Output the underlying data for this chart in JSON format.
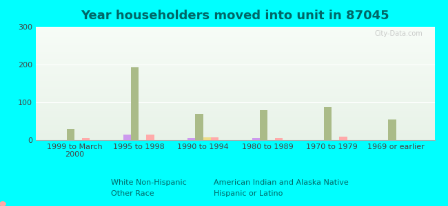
{
  "title": "Year householders moved into unit in 87045",
  "background_color": "#00FFFF",
  "categories": [
    "1999 to March\n2000",
    "1995 to 1998",
    "1990 to 1994",
    "1980 to 1989",
    "1970 to 1979",
    "1969 or earlier"
  ],
  "series": {
    "White Non-Hispanic": {
      "values": [
        0,
        14,
        5,
        5,
        0,
        0
      ],
      "color": "#cc99ee"
    },
    "American Indian and Alaska Native": {
      "values": [
        30,
        192,
        70,
        80,
        87,
        55
      ],
      "color": "#aabb88"
    },
    "Other Race": {
      "values": [
        0,
        0,
        8,
        0,
        0,
        0
      ],
      "color": "#eedd88"
    },
    "Hispanic or Latino": {
      "values": [
        5,
        14,
        8,
        5,
        10,
        0
      ],
      "color": "#ffaaaa"
    }
  },
  "ylim": [
    0,
    300
  ],
  "yticks": [
    0,
    100,
    200,
    300
  ],
  "bar_width": 0.12,
  "title_fontsize": 13,
  "legend_fontsize": 8,
  "tick_fontsize": 8,
  "watermark": "City-Data.com",
  "title_color": "#006666",
  "tick_color": "#444444",
  "legend_text_color": "#006666"
}
